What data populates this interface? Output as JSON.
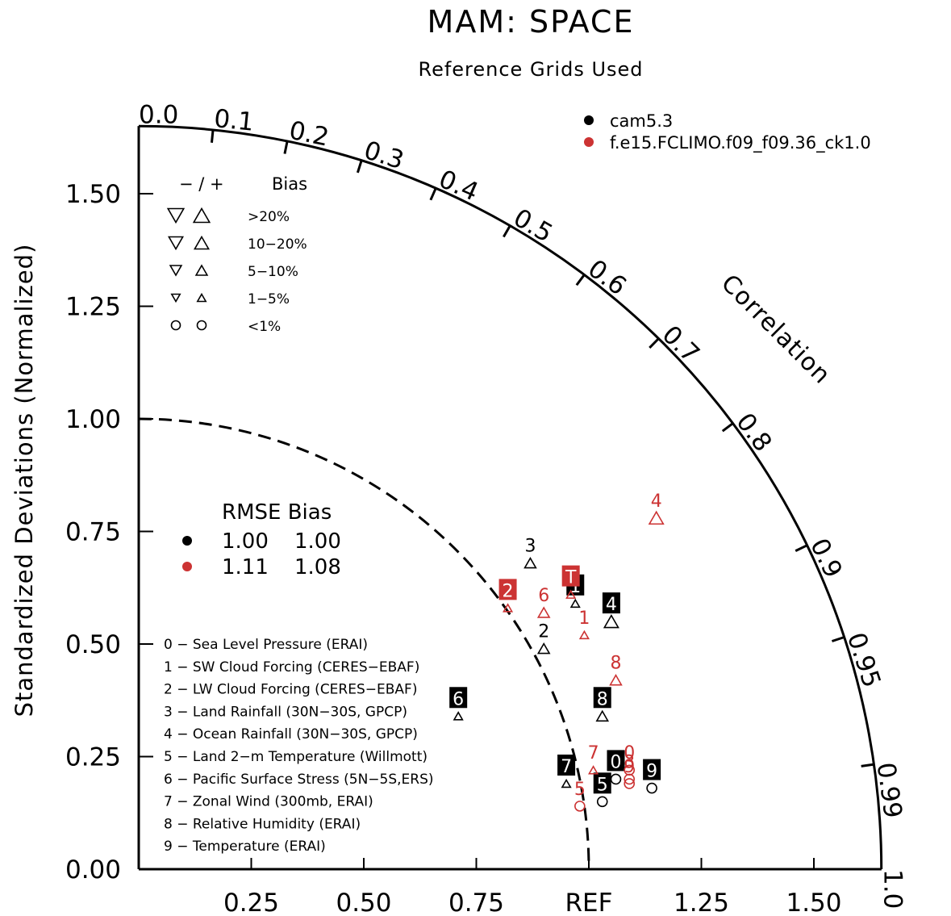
{
  "chart_data": {
    "type": "scatter",
    "plot_style": "taylor-diagram",
    "title": "MAM: SPACE",
    "subtitle": "Reference Grids Used",
    "ylabel": "Standardized Deviations (Normalized)",
    "arc_label": "Correlation",
    "ref_label": "REF",
    "std_range": [
      0,
      1.65
    ],
    "reference_std": 1.0,
    "x_ticks": [
      "0.25",
      "0.50",
      "0.75",
      "REF",
      "1.25",
      "1.50"
    ],
    "x_tick_values": [
      0.25,
      0.5,
      0.75,
      1.0,
      1.25,
      1.5
    ],
    "y_ticks": [
      "0.00",
      "0.25",
      "0.50",
      "0.75",
      "1.00",
      "1.25",
      "1.50"
    ],
    "y_tick_values": [
      0,
      0.25,
      0.5,
      0.75,
      1.0,
      1.25,
      1.5
    ],
    "correlation_ticks": [
      {
        "value": 0.0,
        "label": "0.0"
      },
      {
        "value": 0.1,
        "label": "0.1"
      },
      {
        "value": 0.2,
        "label": "0.2"
      },
      {
        "value": 0.3,
        "label": "0.3"
      },
      {
        "value": 0.4,
        "label": "0.4"
      },
      {
        "value": 0.5,
        "label": "0.5"
      },
      {
        "value": 0.6,
        "label": "0.6"
      },
      {
        "value": 0.7,
        "label": "0.7"
      },
      {
        "value": 0.8,
        "label": "0.8"
      },
      {
        "value": 0.9,
        "label": "0.9"
      },
      {
        "value": 0.95,
        "label": "0.95"
      },
      {
        "value": 0.99,
        "label": "0.99"
      },
      {
        "value": 1.0,
        "label": "1.0"
      }
    ],
    "series": [
      {
        "name": "cam5.3",
        "color": "#000000",
        "rmse": "1.00",
        "bias": "1.00",
        "points": [
          {
            "id": "0",
            "x": 1.06,
            "y": 0.2,
            "marker": "circle",
            "label_box": true
          },
          {
            "id": "1",
            "x": 0.97,
            "y": 0.59,
            "marker": "triangle-up",
            "size": 1,
            "label_box": true
          },
          {
            "id": "2",
            "x": 0.9,
            "y": 0.49,
            "marker": "triangle-up",
            "size": 2,
            "label_box": false
          },
          {
            "id": "3",
            "x": 0.87,
            "y": 0.68,
            "marker": "triangle-up",
            "size": 2,
            "label_box": false
          },
          {
            "id": "4",
            "x": 1.05,
            "y": 0.55,
            "marker": "triangle-up",
            "size": 3,
            "label_box": true
          },
          {
            "id": "5",
            "x": 1.03,
            "y": 0.15,
            "marker": "circle",
            "label_box": true
          },
          {
            "id": "6",
            "x": 0.71,
            "y": 0.34,
            "marker": "triangle-up",
            "size": 1,
            "label_box": true
          },
          {
            "id": "7",
            "x": 0.95,
            "y": 0.19,
            "marker": "triangle-up",
            "size": 1,
            "label_box": true
          },
          {
            "id": "8",
            "x": 1.03,
            "y": 0.34,
            "marker": "triangle-up",
            "size": 2,
            "label_box": true
          },
          {
            "id": "9",
            "x": 1.14,
            "y": 0.18,
            "marker": "circle",
            "label_box": true
          }
        ]
      },
      {
        "name": "f.e15.FCLIMO.f09_f09.36_ck1.0",
        "color": "#cc3333",
        "rmse": "1.11",
        "bias": "1.08",
        "points": [
          {
            "id": "0",
            "x": 1.09,
            "y": 0.22,
            "marker": "circle",
            "label_box": false
          },
          {
            "id": "1",
            "x": 0.99,
            "y": 0.52,
            "marker": "triangle-up",
            "size": 1,
            "label_box": false
          },
          {
            "id": "2",
            "x": 0.82,
            "y": 0.58,
            "marker": "triangle-up",
            "size": 1,
            "label_box": true
          },
          {
            "id": "3",
            "x": 1.09,
            "y": 0.2,
            "marker": "circle",
            "label_box": false
          },
          {
            "id": "4",
            "x": 1.15,
            "y": 0.78,
            "marker": "triangle-up",
            "size": 3,
            "label_box": false
          },
          {
            "id": "5",
            "x": 0.98,
            "y": 0.14,
            "marker": "circle",
            "label_box": false
          },
          {
            "id": "6",
            "x": 0.9,
            "y": 0.57,
            "marker": "triangle-up",
            "size": 2,
            "label_box": false
          },
          {
            "id": "7",
            "x": 1.01,
            "y": 0.22,
            "marker": "triangle-up",
            "size": 1,
            "label_box": false
          },
          {
            "id": "8",
            "x": 1.06,
            "y": 0.42,
            "marker": "triangle-up",
            "size": 2,
            "label_box": false
          },
          {
            "id": "9",
            "x": 1.09,
            "y": 0.19,
            "marker": "circle",
            "label_box": false
          },
          {
            "id": "T",
            "x": 0.96,
            "y": 0.61,
            "marker": "triangle-up",
            "size": 1,
            "label_box": true
          }
        ]
      }
    ],
    "bias_legend": {
      "header": "− / +",
      "header2": "Bias",
      "rows": [
        {
          "label": ">20%",
          "size": 4
        },
        {
          "label": "10−20%",
          "size": 3
        },
        {
          "label": "5−10%",
          "size": 2
        },
        {
          "label": "1−5%",
          "size": 1
        },
        {
          "label": "<1%",
          "size": 0
        }
      ]
    },
    "stats_legend": {
      "header": "RMSE Bias"
    },
    "variables": [
      "0 − Sea Level Pressure (ERAI)",
      "1 − SW Cloud Forcing (CERES−EBAF)",
      "2 − LW Cloud Forcing (CERES−EBAF)",
      "3 − Land Rainfall (30N−30S, GPCP)",
      "4 − Ocean Rainfall (30N−30S, GPCP)",
      "5 − Land 2−m Temperature (Willmott)",
      "6 − Pacific Surface Stress (5N−5S,ERS)",
      "7 − Zonal Wind (300mb, ERAI)",
      "8 − Relative Humidity (ERAI)",
      "9 − Temperature (ERAI)"
    ]
  }
}
